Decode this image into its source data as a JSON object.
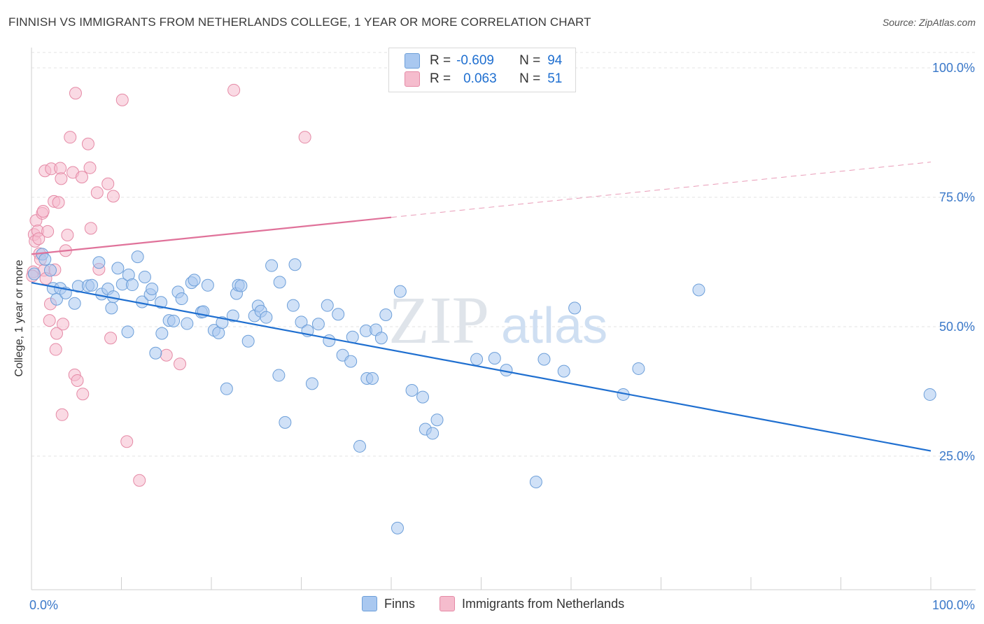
{
  "title": "FINNISH VS IMMIGRANTS FROM NETHERLANDS COLLEGE, 1 YEAR OR MORE CORRELATION CHART",
  "source": "Source: ZipAtlas.com",
  "watermark": {
    "zip": "ZIP",
    "atlas": "atlas"
  },
  "legend": {
    "r_label": "R =",
    "n_label": "N =",
    "finns": {
      "r": "-0.609",
      "n": "94"
    },
    "netherlands": {
      "r": "0.063",
      "n": "51"
    }
  },
  "colors": {
    "finns_fill": "#a9c8f0",
    "finns_stroke": "#6d9fd9",
    "finns_line": "#1f6fd0",
    "nl_fill": "#f5bccd",
    "nl_stroke": "#e58aa6",
    "nl_line": "#e0729a",
    "axis_text": "#3a78c9",
    "grid": "#e3e3e3"
  },
  "chart_data": {
    "type": "scatter",
    "title": "FINNISH VS IMMIGRANTS FROM NETHERLANDS COLLEGE, 1 YEAR OR MORE CORRELATION CHART",
    "xlabel": "",
    "ylabel": "College, 1 year or more",
    "xlim": [
      0,
      100
    ],
    "ylim": [
      0,
      104
    ],
    "x_tick_labels": [
      "0.0%",
      "100.0%"
    ],
    "y_ticks": [
      25,
      50,
      75,
      100
    ],
    "y_tick_labels": [
      "25.0%",
      "50.0%",
      "75.0%",
      "100.0%"
    ],
    "grid": true,
    "series": [
      {
        "name": "Finns",
        "r": -0.609,
        "n": 94,
        "trend": {
          "x0": 0,
          "y0": 58.5,
          "x1": 100,
          "y1": 26.0,
          "dashed_from": null
        },
        "points": [
          [
            0.3,
            60.2
          ],
          [
            1.2,
            64.0
          ],
          [
            1.5,
            63.0
          ],
          [
            2.1,
            60.9
          ],
          [
            2.4,
            57.4
          ],
          [
            2.8,
            55.3
          ],
          [
            3.2,
            57.4
          ],
          [
            3.8,
            56.5
          ],
          [
            4.8,
            54.5
          ],
          [
            5.2,
            57.8
          ],
          [
            6.3,
            57.9
          ],
          [
            6.7,
            58.0
          ],
          [
            7.5,
            62.4
          ],
          [
            7.8,
            56.3
          ],
          [
            8.5,
            57.3
          ],
          [
            8.9,
            53.6
          ],
          [
            9.1,
            55.8
          ],
          [
            9.6,
            61.3
          ],
          [
            10.1,
            58.2
          ],
          [
            10.8,
            60.0
          ],
          [
            10.7,
            49.0
          ],
          [
            11.2,
            58.1
          ],
          [
            11.8,
            63.5
          ],
          [
            12.3,
            54.8
          ],
          [
            12.6,
            59.6
          ],
          [
            13.2,
            56.2
          ],
          [
            13.4,
            57.3
          ],
          [
            13.8,
            44.9
          ],
          [
            14.4,
            54.7
          ],
          [
            14.5,
            48.7
          ],
          [
            15.3,
            51.2
          ],
          [
            15.8,
            51.1
          ],
          [
            16.3,
            56.7
          ],
          [
            16.7,
            55.4
          ],
          [
            17.3,
            50.6
          ],
          [
            17.8,
            58.5
          ],
          [
            18.1,
            59.0
          ],
          [
            18.9,
            52.8
          ],
          [
            19.1,
            52.9
          ],
          [
            19.6,
            58.0
          ],
          [
            20.3,
            49.3
          ],
          [
            20.8,
            48.8
          ],
          [
            21.2,
            50.8
          ],
          [
            21.7,
            38.0
          ],
          [
            22.4,
            52.1
          ],
          [
            22.8,
            56.4
          ],
          [
            23.0,
            58.0
          ],
          [
            23.3,
            57.9
          ],
          [
            24.1,
            47.2
          ],
          [
            24.8,
            52.1
          ],
          [
            25.2,
            54.0
          ],
          [
            25.5,
            53.0
          ],
          [
            26.1,
            51.8
          ],
          [
            26.7,
            61.8
          ],
          [
            27.5,
            40.6
          ],
          [
            27.6,
            58.6
          ],
          [
            28.2,
            31.5
          ],
          [
            29.1,
            54.1
          ],
          [
            29.3,
            62.0
          ],
          [
            30.0,
            50.9
          ],
          [
            30.7,
            49.2
          ],
          [
            31.2,
            39.0
          ],
          [
            31.9,
            50.5
          ],
          [
            32.9,
            54.1
          ],
          [
            33.1,
            47.3
          ],
          [
            34.1,
            52.4
          ],
          [
            34.6,
            44.5
          ],
          [
            35.5,
            43.3
          ],
          [
            35.7,
            48.0
          ],
          [
            36.5,
            26.9
          ],
          [
            37.2,
            49.2
          ],
          [
            37.3,
            40.0
          ],
          [
            37.9,
            40.0
          ],
          [
            38.3,
            49.4
          ],
          [
            38.9,
            47.8
          ],
          [
            39.4,
            52.3
          ],
          [
            40.7,
            11.1
          ],
          [
            41.0,
            56.8
          ],
          [
            42.3,
            37.7
          ],
          [
            43.5,
            36.4
          ],
          [
            43.8,
            30.2
          ],
          [
            44.6,
            29.4
          ],
          [
            45.1,
            32.0
          ],
          [
            49.5,
            43.7
          ],
          [
            51.5,
            43.9
          ],
          [
            52.8,
            41.6
          ],
          [
            56.1,
            20.0
          ],
          [
            57.0,
            43.7
          ],
          [
            59.2,
            41.4
          ],
          [
            60.4,
            53.6
          ],
          [
            65.8,
            36.9
          ],
          [
            67.5,
            41.9
          ],
          [
            74.2,
            57.1
          ],
          [
            99.9,
            36.9
          ]
        ]
      },
      {
        "name": "Immigrants from Netherlands",
        "r": 0.063,
        "n": 51,
        "trend": {
          "x0": 0,
          "y0": 64.0,
          "x1": 100,
          "y1": 81.8,
          "dashed_from": 40
        },
        "points": [
          [
            0.2,
            60.6
          ],
          [
            0.3,
            67.8
          ],
          [
            0.4,
            66.5
          ],
          [
            0.5,
            70.5
          ],
          [
            0.7,
            68.5
          ],
          [
            0.8,
            67.0
          ],
          [
            0.9,
            64.1
          ],
          [
            1.0,
            63.0
          ],
          [
            1.2,
            71.9
          ],
          [
            1.3,
            72.3
          ],
          [
            1.4,
            60.9
          ],
          [
            1.5,
            80.1
          ],
          [
            1.6,
            59.3
          ],
          [
            1.8,
            68.4
          ],
          [
            2.0,
            51.2
          ],
          [
            2.1,
            54.4
          ],
          [
            2.2,
            80.5
          ],
          [
            2.5,
            74.2
          ],
          [
            2.6,
            61.0
          ],
          [
            2.7,
            45.6
          ],
          [
            2.8,
            48.7
          ],
          [
            3.0,
            74.0
          ],
          [
            3.2,
            80.6
          ],
          [
            3.3,
            78.6
          ],
          [
            3.4,
            33.0
          ],
          [
            3.5,
            50.5
          ],
          [
            3.8,
            64.7
          ],
          [
            4.0,
            67.7
          ],
          [
            4.3,
            86.6
          ],
          [
            4.6,
            79.8
          ],
          [
            4.8,
            40.7
          ],
          [
            4.9,
            95.1
          ],
          [
            5.1,
            39.6
          ],
          [
            5.6,
            78.9
          ],
          [
            5.7,
            37.0
          ],
          [
            6.3,
            85.3
          ],
          [
            6.5,
            80.7
          ],
          [
            6.6,
            69.0
          ],
          [
            7.3,
            75.9
          ],
          [
            7.5,
            61.1
          ],
          [
            8.5,
            77.6
          ],
          [
            8.8,
            47.8
          ],
          [
            9.1,
            75.2
          ],
          [
            10.1,
            93.8
          ],
          [
            10.6,
            27.8
          ],
          [
            12.0,
            20.3
          ],
          [
            15.0,
            44.5
          ],
          [
            16.5,
            42.8
          ],
          [
            22.5,
            95.7
          ],
          [
            30.4,
            86.6
          ],
          [
            0.1,
            59.8
          ]
        ]
      }
    ]
  }
}
